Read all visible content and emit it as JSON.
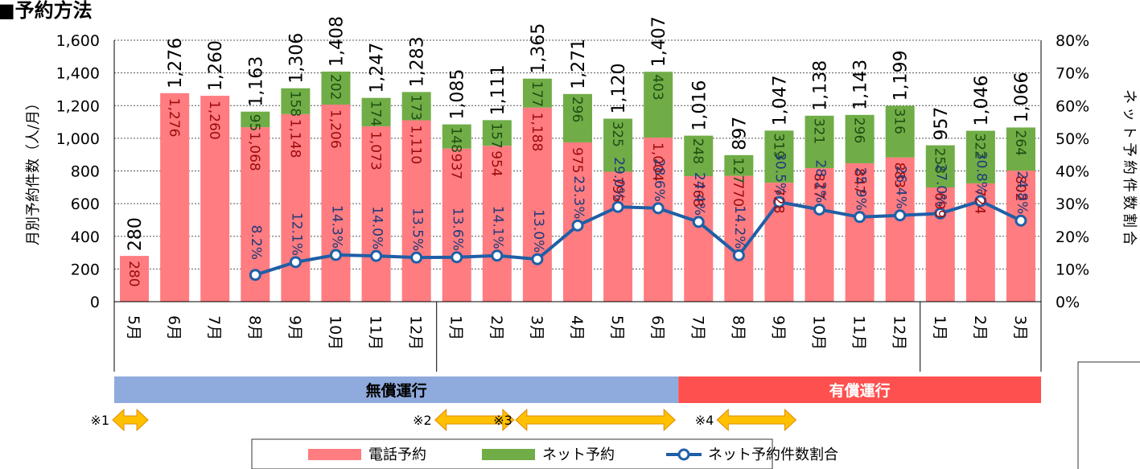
{
  "page_title": "■予約方法",
  "chart_data": {
    "type": "bar",
    "stacked": true,
    "categories": [
      "5月",
      "6月",
      "7月",
      "8月",
      "9月",
      "10月",
      "11月",
      "12月",
      "1月",
      "2月",
      "3月",
      "4月",
      "5月",
      "6月",
      "7月",
      "8月",
      "9月",
      "10月",
      "11月",
      "12月",
      "1月",
      "2月",
      "3月"
    ],
    "series": [
      {
        "name": "電話予約",
        "type": "bar",
        "color": "#ff7c80",
        "values": [
          280,
          1276,
          1260,
          1068,
          1148,
          1206,
          1073,
          1110,
          937,
          954,
          1188,
          975,
          795,
          1004,
          768,
          770,
          728,
          817,
          847,
          883,
          699,
          724,
          802
        ]
      },
      {
        "name": "ネット予約",
        "type": "bar",
        "color": "#70ad47",
        "values": [
          null,
          null,
          null,
          95,
          158,
          202,
          174,
          173,
          148,
          157,
          177,
          296,
          325,
          403,
          248,
          127,
          319,
          321,
          296,
          316,
          258,
          322,
          264
        ]
      },
      {
        "name": "ネット予約件数割合",
        "type": "line",
        "axis": "right",
        "color": "#1f5fa6",
        "values": [
          null,
          null,
          null,
          8.2,
          12.1,
          14.3,
          14.0,
          13.5,
          13.6,
          14.1,
          13.0,
          23.3,
          29.0,
          28.6,
          24.4,
          14.2,
          30.5,
          28.2,
          25.9,
          26.4,
          27.0,
          30.8,
          24.8
        ]
      }
    ],
    "series_labels": {
      "phone": [
        "280",
        "1,276",
        "1,260",
        "1,068",
        "1,148",
        "1,206",
        "1,073",
        "1,110",
        "937",
        "954",
        "1,188",
        "975",
        "795",
        "1,004",
        "768",
        "770",
        "728",
        "817",
        "847",
        "883",
        "699",
        "724",
        "802"
      ],
      "net": [
        "",
        "",
        "",
        "95",
        "158",
        "202",
        "174",
        "173",
        "148",
        "157",
        "177",
        "296",
        "325",
        "403",
        "248",
        "127",
        "319",
        "321",
        "296",
        "316",
        "258",
        "322",
        "264"
      ],
      "pct": [
        "",
        "",
        "",
        "8.2%",
        "12.1%",
        "14.3%",
        "14.0%",
        "13.5%",
        "13.6%",
        "14.1%",
        "13.0%",
        "23.3%",
        "29.0%",
        "28.6%",
        "24.4%",
        "14.2%",
        "30.5%",
        "28.2%",
        "25.9%",
        "26.4%",
        "27.0%",
        "30.8%",
        "24.8%"
      ]
    },
    "totals": [
      280,
      1276,
      1260,
      1163,
      1306,
      1408,
      1247,
      1283,
      1085,
      1111,
      1365,
      1271,
      1120,
      1407,
      1016,
      897,
      1047,
      1138,
      1143,
      1199,
      957,
      1046,
      1066
    ],
    "total_labels": [
      "280",
      "1,276",
      "1,260",
      "1,163",
      "1,306",
      "1,408",
      "1,247",
      "1,283",
      "1,085",
      "1,111",
      "1,365",
      "1,271",
      "1,120",
      "1,407",
      "1,016",
      "897",
      "1,047",
      "1,138",
      "1,143",
      "1,199",
      "957",
      "1,046",
      "1,066"
    ],
    "ylabel": "月別予約件数（人/月）",
    "ylabel_right": "ネット予約件数割合",
    "ylim": [
      0,
      1600
    ],
    "ylim_right": [
      0,
      80
    ],
    "yticks": [
      "0",
      "200",
      "400",
      "600",
      "800",
      "1,000",
      "1,200",
      "1,400",
      "1,600"
    ],
    "yticks_right": [
      "0%",
      "10%",
      "20%",
      "30%",
      "40%",
      "50%",
      "60%",
      "70%",
      "80%"
    ],
    "grid": true,
    "legend_position": "bottom",
    "period_bands": [
      {
        "label": "無償運行",
        "from": 0,
        "to": 13,
        "color": "#8faadc"
      },
      {
        "label": "有償運行",
        "from": 14,
        "to": 22,
        "color": "#ff5050"
      }
    ],
    "year_breaks_after": [
      7,
      19
    ],
    "notes": [
      {
        "label": "※1",
        "from": 0,
        "to": 0
      },
      {
        "label": "※2",
        "from": 8,
        "to": 9
      },
      {
        "label": "※3",
        "from": 10,
        "to": 13
      },
      {
        "label": "※4",
        "from": 15,
        "to": 16
      }
    ],
    "note_arrow_color": "#ffc000"
  }
}
